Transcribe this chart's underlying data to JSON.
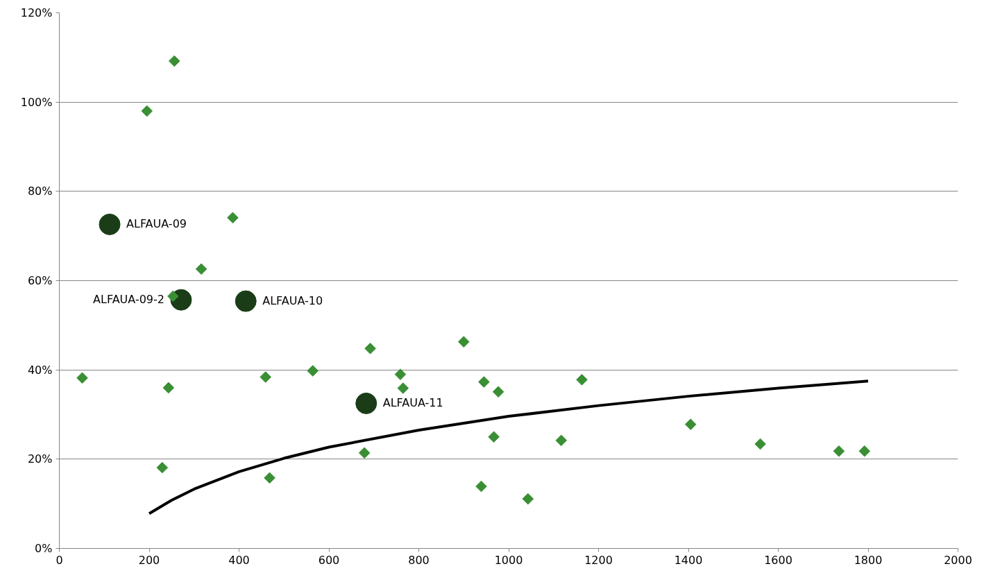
{
  "chart_data": {
    "type": "scatter",
    "xlim": [
      0,
      2000
    ],
    "xticks": [
      0,
      200,
      400,
      600,
      800,
      1000,
      1200,
      1400,
      1600,
      1800,
      2000
    ],
    "ylim": [
      0,
      120
    ],
    "yticks": [
      {
        "value": 0,
        "label": "0%"
      },
      {
        "value": 20,
        "label": "20%"
      },
      {
        "value": 40,
        "label": "40%"
      },
      {
        "value": 60,
        "label": "60%"
      },
      {
        "value": 80,
        "label": "80%"
      },
      {
        "value": 100,
        "label": "100%"
      },
      {
        "value": 120,
        "label": "120%"
      }
    ],
    "grid": "y",
    "series": [
      {
        "marker": "diamond",
        "color": "#3a8f34",
        "x": [
          51,
          195,
          256,
          243,
          229,
          253,
          316,
          386,
          459,
          468,
          564,
          692,
          679,
          759,
          765,
          900,
          945,
          939,
          967,
          977,
          1043,
          1117,
          1163,
          1405,
          1560,
          1735,
          1792
        ],
        "values": [
          38.2,
          98.0,
          109.2,
          36.0,
          18.1,
          56.5,
          62.6,
          74.1,
          38.4,
          15.8,
          39.8,
          44.8,
          21.4,
          39.0,
          35.9,
          46.3,
          37.3,
          13.9,
          25.0,
          35.1,
          11.1,
          24.2,
          37.8,
          27.8,
          23.4,
          21.8,
          21.8
        ]
      },
      {
        "marker": "circle",
        "color": "#1a3d17",
        "x": [
          112,
          271,
          415,
          683
        ],
        "values": [
          72.6,
          55.7,
          55.4,
          32.5
        ]
      },
      {
        "type": "line",
        "line_style": "solid",
        "color": "#000000",
        "x": [
          200,
          250,
          300,
          400,
          500,
          600,
          800,
          1000,
          1200,
          1400,
          1600,
          1800
        ],
        "values": [
          7.8,
          10.8,
          13.3,
          17.2,
          20.2,
          22.7,
          26.5,
          29.6,
          32.0,
          34.1,
          35.9,
          37.5
        ]
      }
    ],
    "annotations": [
      {
        "text": "ALFAUA-09",
        "x": 112,
        "y": 72.6
      },
      {
        "text": "ALFAUA-09-2",
        "x": 271,
        "y": 55.7
      },
      {
        "text": "ALFAUA-10",
        "x": 415,
        "y": 55.4
      },
      {
        "text": "ALFAUA-11",
        "x": 683,
        "y": 32.5
      }
    ]
  }
}
